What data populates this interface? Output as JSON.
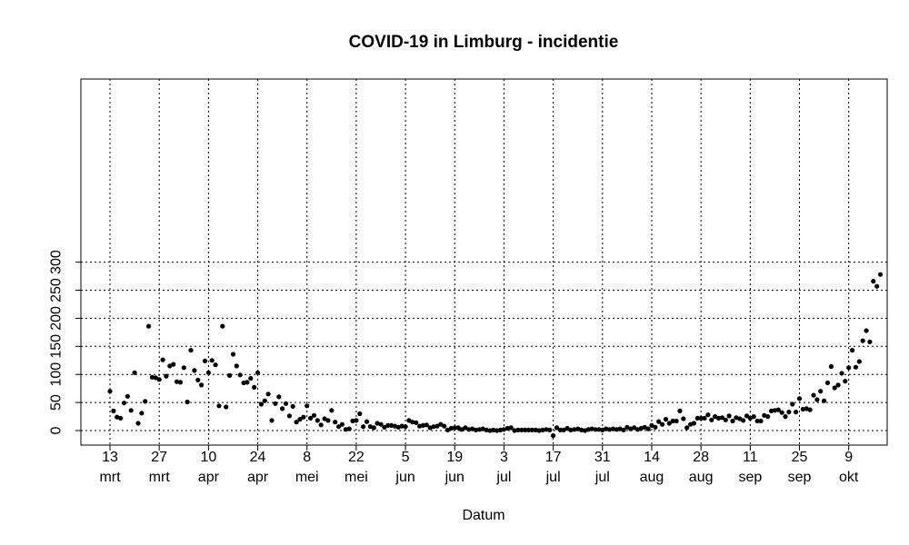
{
  "chart_data": {
    "type": "scatter",
    "title": "COVID-19 in Limburg - incidentie",
    "xlabel": "Datum",
    "ylabel": "",
    "x_start": "2020-03-13",
    "ylim": [
      0,
      300
    ],
    "yticks": [
      0,
      50,
      100,
      150,
      200,
      250,
      300
    ],
    "xticks": [
      {
        "day": 0,
        "line1": "13",
        "line2": "mrt"
      },
      {
        "day": 14,
        "line1": "27",
        "line2": "mrt"
      },
      {
        "day": 28,
        "line1": "10",
        "line2": "apr"
      },
      {
        "day": 42,
        "line1": "24",
        "line2": "apr"
      },
      {
        "day": 56,
        "line1": "8",
        "line2": "mei"
      },
      {
        "day": 70,
        "line1": "22",
        "line2": "mei"
      },
      {
        "day": 84,
        "line1": "5",
        "line2": "jun"
      },
      {
        "day": 98,
        "line1": "19",
        "line2": "jun"
      },
      {
        "day": 112,
        "line1": "3",
        "line2": "jul"
      },
      {
        "day": 126,
        "line1": "17",
        "line2": "jul"
      },
      {
        "day": 140,
        "line1": "31",
        "line2": "jul"
      },
      {
        "day": 154,
        "line1": "14",
        "line2": "aug"
      },
      {
        "day": 168,
        "line1": "28",
        "line2": "aug"
      },
      {
        "day": 182,
        "line1": "11",
        "line2": "sep"
      },
      {
        "day": 196,
        "line1": "25",
        "line2": "sep"
      },
      {
        "day": 210,
        "line1": "9",
        "line2": "okt"
      }
    ],
    "grid": true,
    "values": [
      70,
      35,
      24,
      22,
      49,
      61,
      36,
      103,
      13,
      31,
      52,
      186,
      95,
      94,
      91,
      126,
      97,
      115,
      118,
      87,
      86,
      112,
      51,
      143,
      107,
      90,
      81,
      124,
      103,
      125,
      117,
      44,
      186,
      42,
      98,
      136,
      115,
      99,
      85,
      86,
      93,
      77,
      103,
      47,
      53,
      65,
      18,
      48,
      60,
      39,
      48,
      26,
      43,
      15,
      20,
      24,
      44,
      22,
      27,
      18,
      10,
      21,
      18,
      36,
      15,
      7,
      11,
      2,
      3,
      17,
      18,
      30,
      7,
      16,
      7,
      5,
      13,
      11,
      6,
      9,
      9,
      8,
      6,
      8,
      7,
      18,
      15,
      14,
      8,
      9,
      10,
      5,
      7,
      8,
      11,
      8,
      1,
      4,
      5,
      5,
      2,
      5,
      2,
      3,
      1,
      2,
      3,
      1,
      0,
      1,
      0,
      1,
      2,
      4,
      5,
      0,
      1,
      1,
      1,
      1,
      1,
      1,
      0,
      1,
      2,
      1,
      -9,
      5,
      1,
      1,
      4,
      1,
      2,
      3,
      1,
      0,
      2,
      3,
      2,
      2,
      1,
      3,
      2,
      3,
      2,
      3,
      1,
      6,
      3,
      5,
      2,
      4,
      6,
      3,
      9,
      6,
      16,
      11,
      20,
      13,
      17,
      17,
      35,
      21,
      5,
      11,
      13,
      22,
      22,
      22,
      28,
      19,
      25,
      22,
      23,
      19,
      26,
      17,
      23,
      21,
      18,
      26,
      22,
      25,
      17,
      17,
      27,
      25,
      35,
      36,
      37,
      32,
      25,
      33,
      47,
      33,
      57,
      38,
      39,
      37,
      63,
      55,
      70,
      53,
      85,
      114,
      76,
      81,
      102,
      88,
      112,
      143,
      113,
      123,
      160,
      178,
      158,
      266,
      257,
      278
    ]
  }
}
